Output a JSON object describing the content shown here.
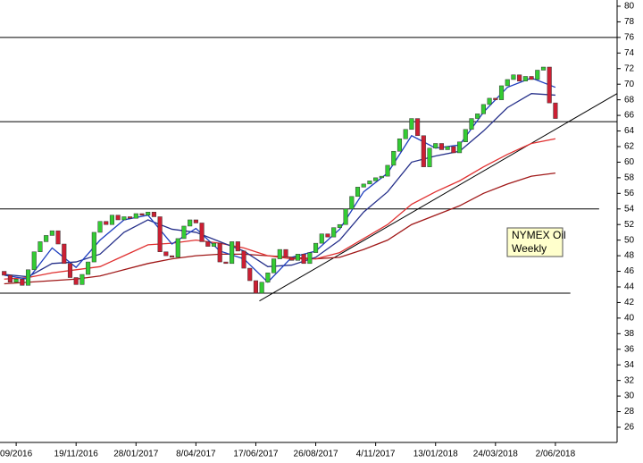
{
  "chart_data": {
    "type": "candlestick",
    "categories": [
      null,
      null,
      "09/2016",
      null,
      null,
      null,
      null,
      null,
      null,
      null,
      null,
      null,
      "19/11/2016",
      null,
      null,
      null,
      null,
      null,
      null,
      null,
      null,
      null,
      "28/01/2017",
      null,
      null,
      null,
      null,
      null,
      null,
      null,
      null,
      null,
      "8/04/2017",
      null,
      null,
      null,
      null,
      null,
      null,
      null,
      null,
      null,
      "17/06/2017",
      null,
      null,
      null,
      null,
      null,
      null,
      null,
      null,
      null,
      "26/08/2017",
      null,
      null,
      null,
      null,
      null,
      null,
      null,
      null,
      null,
      "4/11/2017",
      null,
      null,
      null,
      null,
      null,
      null,
      null,
      null,
      null,
      "13/01/2018",
      null,
      null,
      null,
      null,
      null,
      null,
      null,
      null,
      null,
      "24/03/2018",
      null,
      null,
      null,
      null,
      null,
      null,
      null,
      null,
      null,
      "2/06/2018"
    ],
    "open": [
      46.0,
      45.5,
      44.6,
      45.0,
      44.2,
      46.2,
      48.5,
      49.8,
      50.6,
      51.2,
      49.5,
      47.0,
      45.2,
      44.3,
      45.6,
      47.2,
      51.0,
      52.4,
      52.0,
      53.2,
      52.6,
      53.0,
      52.8,
      53.4,
      53.2,
      53.6,
      53.0,
      48.5,
      48.0,
      47.8,
      50.2,
      51.8,
      52.6,
      52.2,
      49.8,
      49.2,
      49.6,
      47.2,
      47.0,
      49.8,
      48.6,
      46.4,
      44.8,
      43.2,
      44.6,
      45.8,
      47.6,
      48.8,
      47.8,
      47.4,
      48.2,
      47.0,
      48.4,
      49.6,
      50.8,
      50.4,
      51.6,
      52.0,
      54.0,
      55.6,
      56.8,
      57.2,
      57.6,
      58.0,
      58.2,
      59.6,
      61.4,
      63.0,
      64.2,
      65.6,
      63.4,
      59.4,
      61.8,
      62.4,
      61.6,
      62.0,
      61.2,
      62.6,
      64.2,
      65.6,
      66.2,
      67.4,
      68.2,
      68.0,
      69.8,
      70.6,
      71.2,
      70.4,
      71.0,
      70.6,
      71.8,
      72.2,
      67.6
    ],
    "close": [
      45.5,
      44.6,
      45.0,
      44.2,
      46.2,
      48.5,
      49.8,
      50.6,
      51.2,
      49.5,
      47.0,
      45.2,
      44.3,
      45.6,
      47.2,
      51.0,
      52.4,
      52.0,
      53.2,
      52.6,
      53.0,
      52.8,
      53.4,
      53.2,
      53.6,
      53.0,
      48.5,
      48.0,
      47.8,
      50.2,
      51.8,
      52.6,
      52.2,
      49.8,
      49.2,
      49.6,
      47.2,
      47.0,
      49.8,
      48.6,
      46.4,
      44.8,
      43.2,
      44.6,
      45.8,
      47.6,
      48.8,
      47.8,
      47.4,
      48.2,
      47.0,
      48.4,
      49.6,
      50.8,
      50.4,
      51.6,
      52.0,
      54.0,
      55.6,
      56.8,
      57.2,
      57.6,
      58.0,
      58.2,
      59.6,
      61.4,
      63.0,
      64.2,
      65.6,
      63.4,
      59.4,
      61.8,
      62.4,
      61.6,
      62.0,
      61.2,
      62.6,
      64.2,
      65.6,
      66.2,
      67.4,
      68.2,
      68.0,
      69.8,
      70.6,
      71.2,
      70.4,
      71.0,
      70.6,
      71.8,
      72.2,
      67.6,
      65.6
    ],
    "up_color": "#33cc33",
    "down_color": "#cc1f33",
    "ma": [
      {
        "color": "#1f3fbf",
        "x": [
          0,
          4,
          8,
          12,
          16,
          20,
          24,
          28,
          32,
          36,
          40,
          44,
          48,
          52,
          56,
          60,
          64,
          68,
          72,
          76,
          80,
          84,
          88,
          92
        ],
        "values": [
          45.5,
          45.0,
          49.0,
          46.5,
          50.0,
          52.6,
          53.2,
          49.5,
          51.5,
          48.6,
          47.6,
          44.6,
          47.8,
          48.6,
          51.4,
          56.2,
          58.6,
          63.4,
          61.8,
          62.2,
          66.4,
          69.6,
          70.8,
          69.6
        ]
      },
      {
        "color": "#26308a",
        "x": [
          0,
          4,
          8,
          12,
          16,
          20,
          24,
          28,
          32,
          36,
          40,
          44,
          48,
          52,
          56,
          60,
          64,
          68,
          72,
          76,
          80,
          84,
          88,
          92
        ],
        "values": [
          45.6,
          45.3,
          47.0,
          47.2,
          48.2,
          51.0,
          52.6,
          51.4,
          51.0,
          49.8,
          48.6,
          46.6,
          46.8,
          47.8,
          50.0,
          53.6,
          56.2,
          60.0,
          60.8,
          61.4,
          64.0,
          67.0,
          68.8,
          68.6
        ]
      },
      {
        "color": "#e03030",
        "x": [
          0,
          4,
          8,
          12,
          16,
          20,
          24,
          28,
          32,
          36,
          40,
          44,
          48,
          52,
          56,
          60,
          64,
          68,
          72,
          76,
          80,
          84,
          88,
          92
        ],
        "values": [
          45.0,
          45.2,
          45.8,
          46.2,
          46.6,
          48.0,
          49.4,
          49.6,
          50.0,
          49.6,
          49.0,
          48.0,
          47.6,
          47.6,
          48.4,
          50.2,
          52.0,
          54.6,
          56.2,
          57.6,
          59.4,
          61.0,
          62.4,
          63.0
        ]
      },
      {
        "color": "#a01818",
        "x": [
          0,
          4,
          8,
          12,
          16,
          20,
          24,
          28,
          32,
          36,
          40,
          44,
          48,
          52,
          56,
          60,
          64,
          68,
          72,
          76,
          80,
          84,
          88,
          92
        ],
        "values": [
          44.4,
          44.6,
          44.8,
          45.0,
          45.4,
          46.2,
          47.0,
          47.6,
          48.0,
          48.2,
          48.2,
          48.0,
          47.8,
          47.6,
          47.8,
          48.8,
          50.0,
          52.0,
          53.2,
          54.4,
          56.0,
          57.2,
          58.2,
          58.6
        ]
      }
    ],
    "hlines": [
      {
        "value": 76,
        "to": 102.3
      },
      {
        "value": 65.2,
        "to": 102.3
      },
      {
        "value": 54,
        "to": 99.3
      },
      {
        "value": 43.2,
        "to": 94.5
      }
    ],
    "trendline": {
      "x": [
        42.6,
        102.3
      ],
      "values": [
        42.2,
        68.8
      ]
    },
    "annotation": [
      "NYMEX Oil",
      "Weekly"
    ],
    "xlim": [
      -0.7,
      102.3
    ],
    "ylim": [
      24.05,
      80.8
    ],
    "yticks": [
      26,
      28,
      30,
      32,
      34,
      36,
      38,
      40,
      42,
      44,
      46,
      48,
      50,
      52,
      54,
      56,
      58,
      60,
      62,
      64,
      66,
      68,
      70,
      72,
      74,
      76,
      78,
      80
    ]
  }
}
